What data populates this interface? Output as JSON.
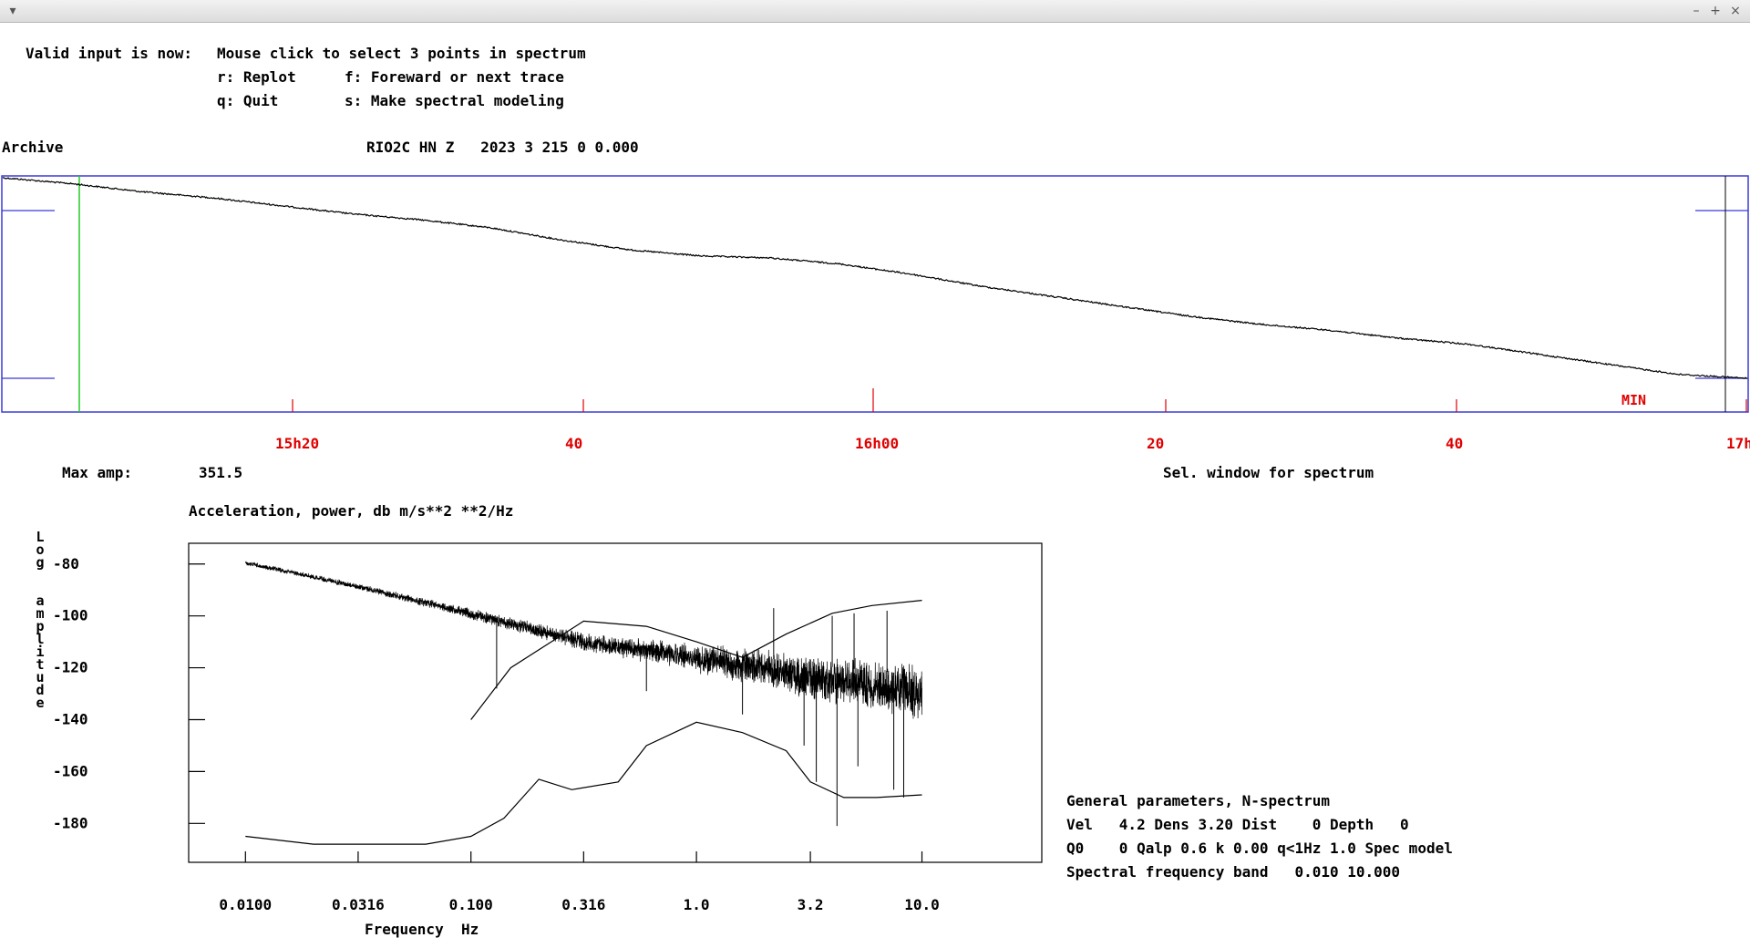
{
  "window": {
    "menu_icon": "chevron-down-icon",
    "buttons": [
      "minimize-icon",
      "maximize-icon",
      "close-icon"
    ],
    "minimize_glyph": "–",
    "maximize_glyph": "+",
    "close_glyph": "×"
  },
  "instructions": {
    "prompt": "Valid input is now:",
    "line1": "Mouse click to select 3 points in spectrum",
    "replot": "r: Replot",
    "forward": "f: Foreward or next trace",
    "quit": "q: Quit",
    "spectral": "s: Make spectral modeling"
  },
  "trace": {
    "source": "Archive",
    "header": "RIO2C HN Z   2023 3 215 0 0.000",
    "min_label": "MIN",
    "time_labels": [
      "15h20",
      "40",
      "16h00",
      "20",
      "40",
      "17h"
    ],
    "max_amp_label": "Max amp:",
    "max_amp_value": "351.5",
    "sel_window_label": "Sel. window for spectrum"
  },
  "spectrum": {
    "title": "Acceleration, power, db m/s**2 **2/Hz",
    "y_axis_label": "Log  amplitude",
    "y_ticks": [
      "-80",
      "-100",
      "-120",
      "-140",
      "-160",
      "-180"
    ],
    "x_ticks": [
      "0.0100",
      "0.0316",
      "0.100",
      "0.316",
      "1.0",
      "3.2",
      "10.0"
    ],
    "x_axis_label": "Frequency  Hz"
  },
  "parameters": {
    "heading": "General parameters, N-spectrum",
    "line1": "Vel   4.2 Dens 3.20 Dist    0 Depth   0",
    "line2": "Q0    0 Qalp 0.6 k 0.00 q<1Hz 1.0 Spec model",
    "line3": "Spectral frequency band   0.010 10.000"
  },
  "colors": {
    "frame": "#3b3bd6",
    "selection_line": "#22cc22",
    "time_labels": "#e00000",
    "trace": "#000000"
  },
  "chart_data": [
    {
      "type": "line",
      "title": "RIO2C HN Z   2023 3 215 0 0.000",
      "xlabel": "",
      "ylabel": "",
      "x_tick_labels": [
        "15h20",
        "40",
        "16h00",
        "20",
        "40",
        "17h"
      ],
      "series": [
        {
          "values": [
            1.0,
            0.97,
            0.93,
            0.9,
            0.86,
            0.82,
            0.79,
            0.75,
            0.69,
            0.64,
            0.61,
            0.6,
            0.57,
            0.52,
            0.46,
            0.41,
            0.36,
            0.31,
            0.27,
            0.24,
            0.2,
            0.17,
            0.12,
            0.07,
            0.02,
            0.0
          ]
        }
      ]
    },
    {
      "type": "line",
      "title": "Acceleration, power, db m/s**2 **2/Hz",
      "xlabel": "Frequency  Hz",
      "ylabel": "Log  amplitude",
      "x_scale": "log",
      "xlim": [
        0.0056,
        34
      ],
      "ylim": [
        -195,
        -72
      ],
      "y_ticks": [
        -80,
        -100,
        -120,
        -140,
        -160,
        -180
      ],
      "x_ticks": [
        0.01,
        0.0316,
        0.1,
        0.316,
        1.0,
        3.2,
        10.0
      ],
      "series": [
        {
          "style": "noisy-spectrum",
          "x": [
            0.01,
            0.0316,
            0.1,
            0.2,
            0.316,
            1.0,
            2.0,
            3.2,
            6.0,
            10.0
          ],
          "y": [
            -79,
            -88,
            -98,
            -104,
            -108,
            -113,
            -116,
            -119,
            -121,
            -123
          ]
        },
        {
          "x": [
            0.1,
            0.15,
            0.316,
            0.6,
            1.0,
            1.6,
            2.5,
            4.0,
            6.0,
            10.0
          ],
          "y": [
            -140,
            -120,
            -102,
            -104,
            -110,
            -116,
            -107,
            -99,
            -96,
            -94
          ]
        },
        {
          "x": [
            0.01,
            0.02,
            0.063,
            0.1,
            0.14,
            0.2,
            0.28,
            0.45,
            0.6,
            1.0,
            1.6,
            2.5,
            3.2,
            4.5,
            6.3,
            10.0
          ],
          "y": [
            -185,
            -188,
            -188,
            -185,
            -178,
            -163,
            -167,
            -164,
            -150,
            -141,
            -145,
            -152,
            -164,
            -170,
            -170,
            -169
          ]
        }
      ]
    }
  ]
}
